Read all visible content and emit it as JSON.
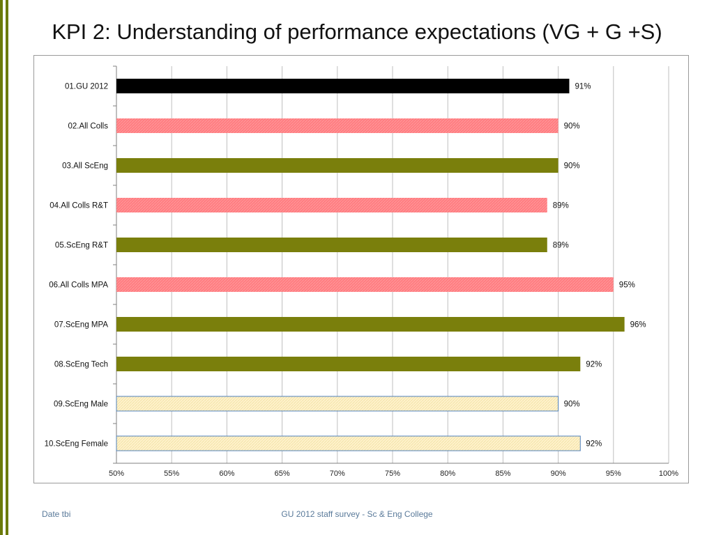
{
  "slide": {
    "title": "KPI 2: Understanding of performance expectations (VG + G +S)",
    "footer_left": "Date tbi",
    "footer_center": "GU 2012 staff survey -  Sc & Eng College"
  },
  "colors": {
    "accent_bar": "#6b7a0a",
    "black": "#000000",
    "pink": "#ff7c80",
    "olive": "#7a7f0c",
    "cream": "#fff2cc",
    "cream_border": "#4f81bd"
  },
  "chart_data": {
    "type": "bar",
    "orientation": "horizontal",
    "title": "",
    "xlabel": "",
    "ylabel": "",
    "xlim": [
      50,
      100
    ],
    "x_ticks": [
      "50%",
      "55%",
      "60%",
      "65%",
      "70%",
      "75%",
      "80%",
      "85%",
      "90%",
      "95%",
      "100%"
    ],
    "grid": true,
    "categories": [
      "01.GU 2012",
      "02.All Colls",
      "03.All ScEng",
      "04.All Colls R&T",
      "05.ScEng R&T",
      "06.All Colls MPA",
      "07.ScEng MPA",
      "08.ScEng Tech",
      "09.ScEng Male",
      "10.ScEng Female"
    ],
    "values": [
      91,
      90,
      90,
      89,
      89,
      95,
      96,
      92,
      90,
      92
    ],
    "labels": [
      "91%",
      "90%",
      "90%",
      "89%",
      "89%",
      "95%",
      "96%",
      "92%",
      "90%",
      "92%"
    ],
    "bar_colors": [
      "black",
      "pink",
      "olive",
      "pink",
      "olive",
      "pink",
      "olive",
      "olive",
      "cream",
      "cream"
    ]
  }
}
